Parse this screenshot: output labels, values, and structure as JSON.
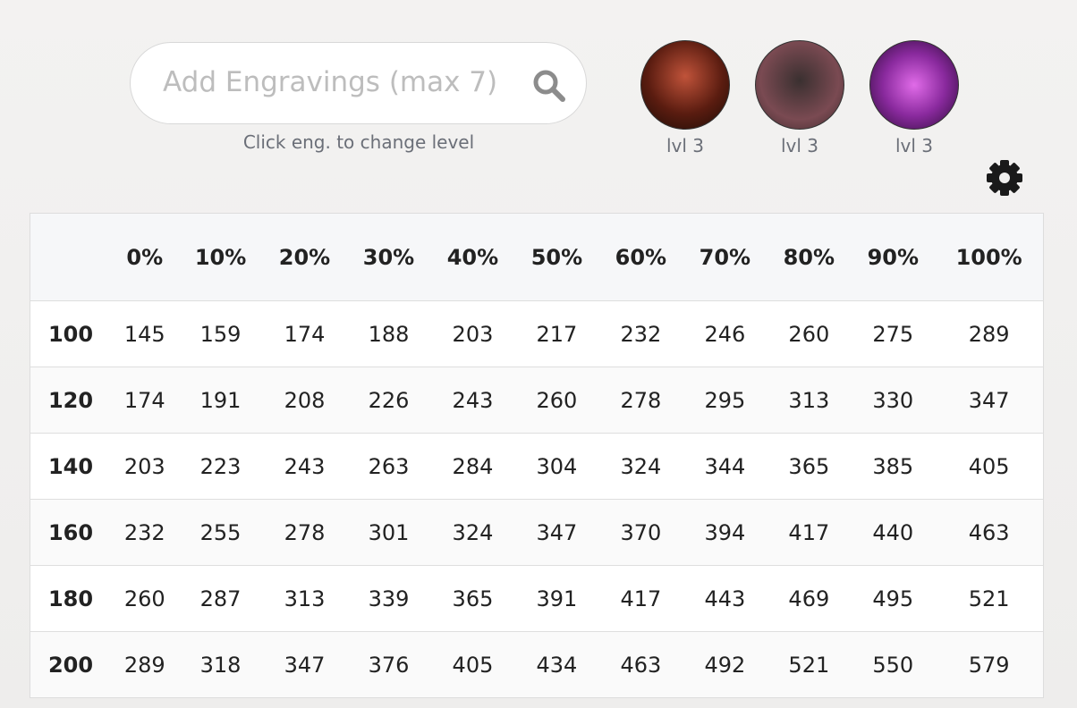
{
  "search": {
    "placeholder": "Add Engravings (max 7)",
    "hint": "Click eng. to change level"
  },
  "engravings": [
    {
      "level": "lvl 3"
    },
    {
      "level": "lvl 3"
    },
    {
      "level": "lvl 3"
    }
  ],
  "table": {
    "header": [
      "0%",
      "10%",
      "20%",
      "30%",
      "40%",
      "50%",
      "60%",
      "70%",
      "80%",
      "90%",
      "100%"
    ],
    "rows": [
      {
        "label": "100",
        "cells": [
          145,
          159,
          174,
          188,
          203,
          217,
          232,
          246,
          260,
          275,
          289
        ]
      },
      {
        "label": "120",
        "cells": [
          174,
          191,
          208,
          226,
          243,
          260,
          278,
          295,
          313,
          330,
          347
        ]
      },
      {
        "label": "140",
        "cells": [
          203,
          223,
          243,
          263,
          284,
          304,
          324,
          344,
          365,
          385,
          405
        ]
      },
      {
        "label": "160",
        "cells": [
          232,
          255,
          278,
          301,
          324,
          347,
          370,
          394,
          417,
          440,
          463
        ]
      },
      {
        "label": "180",
        "cells": [
          260,
          287,
          313,
          339,
          365,
          391,
          417,
          443,
          469,
          495,
          521
        ]
      },
      {
        "label": "200",
        "cells": [
          289,
          318,
          347,
          376,
          405,
          434,
          463,
          492,
          521,
          550,
          579
        ]
      }
    ]
  }
}
